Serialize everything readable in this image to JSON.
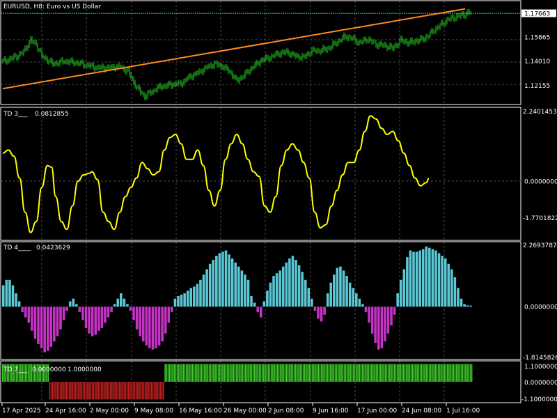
{
  "window": {
    "title": "EURUSD, H8:  Euro vs US Dollar",
    "symbol": "EURUSD",
    "timeframe": "H8"
  },
  "colors": {
    "background": "#000000",
    "grid": "#4a4a4a",
    "border": "#ffffff",
    "candle": "#22c422",
    "bid_line": "#33c8d8",
    "trendline": "#ff8c1a",
    "td3_line": "#ffff00",
    "td4_pos": "#5bc8d6",
    "td4_neg": "#c832c8",
    "td7_pos": "#3ccc28",
    "td7_neg": "#c02020"
  },
  "panels": {
    "price": {
      "current_price": "1.17663",
      "levels": [
        "1.15865",
        "1.14010",
        "1.12155"
      ]
    },
    "td3": {
      "label": "TD 3___",
      "value": "0.0812855",
      "max_label": "2.2401453",
      "zero_label": "0.0000000",
      "min_label": "-1.7701822"
    },
    "td4": {
      "label": "TD 4____",
      "value": "0.0423629",
      "max_label": "2.2693787",
      "zero_label": "0.0000000",
      "min_label": "-1.8145826"
    },
    "td7": {
      "label": "TD 7___",
      "value1": "0.0000000",
      "value2": "1.0000000",
      "max_label": "1.1000000",
      "zero_label": "0.0000000",
      "min_label": "-1.1000000"
    }
  },
  "time_axis": {
    "labels": [
      "17 Apr 2025",
      "24 Apr 16:00",
      "2 May 00:00",
      "9 May 08:00",
      "16 May 16:00",
      "26 May 00:00",
      "2 Jun 08:00",
      "9 Jun 16:00",
      "17 Jun 00:00",
      "24 Jun 08:00",
      "1 Jul 16:00"
    ]
  },
  "chart_data": {
    "type": "line",
    "title": "EURUSD, H8:  Euro vs US Dollar",
    "price_path": [
      [
        0,
        1.14
      ],
      [
        6,
        1.142
      ],
      [
        14,
        1.146
      ],
      [
        20,
        1.156
      ],
      [
        24,
        1.153
      ],
      [
        28,
        1.144
      ],
      [
        36,
        1.138
      ],
      [
        44,
        1.14
      ],
      [
        52,
        1.139
      ],
      [
        60,
        1.137
      ],
      [
        68,
        1.135
      ],
      [
        76,
        1.135
      ],
      [
        84,
        1.136
      ],
      [
        90,
        1.132
      ],
      [
        96,
        1.12
      ],
      [
        102,
        1.113
      ],
      [
        106,
        1.116
      ],
      [
        112,
        1.12
      ],
      [
        120,
        1.122
      ],
      [
        128,
        1.123
      ],
      [
        134,
        1.128
      ],
      [
        140,
        1.131
      ],
      [
        146,
        1.135
      ],
      [
        152,
        1.138
      ],
      [
        158,
        1.136
      ],
      [
        164,
        1.131
      ],
      [
        168,
        1.125
      ],
      [
        174,
        1.13
      ],
      [
        180,
        1.136
      ],
      [
        186,
        1.141
      ],
      [
        192,
        1.143
      ],
      [
        198,
        1.146
      ],
      [
        204,
        1.147
      ],
      [
        210,
        1.144
      ],
      [
        216,
        1.143
      ],
      [
        222,
        1.148
      ],
      [
        228,
        1.148
      ],
      [
        234,
        1.15
      ],
      [
        242,
        1.156
      ],
      [
        246,
        1.159
      ],
      [
        250,
        1.158
      ],
      [
        256,
        1.154
      ],
      [
        262,
        1.157
      ],
      [
        268,
        1.153
      ],
      [
        274,
        1.152
      ],
      [
        280,
        1.15
      ],
      [
        286,
        1.156
      ],
      [
        292,
        1.154
      ],
      [
        298,
        1.156
      ],
      [
        302,
        1.157
      ],
      [
        306,
        1.16
      ],
      [
        310,
        1.164
      ],
      [
        316,
        1.169
      ],
      [
        320,
        1.172
      ],
      [
        326,
        1.174
      ],
      [
        332,
        1.176
      ],
      [
        338,
        1.178
      ],
      [
        342,
        1.179
      ],
      [
        346,
        1.177
      ],
      [
        350,
        1.1762
      ]
    ],
    "price_scale": {
      "min": 1.109,
      "max": 1.182
    },
    "trendline": {
      "from": [
        0,
        1.119
      ],
      "to": [
        332,
        1.18
      ]
    },
    "td3": [
      [
        0,
        0.9
      ],
      [
        4,
        1.0
      ],
      [
        8,
        0.8
      ],
      [
        12,
        0.1
      ],
      [
        16,
        -1.0
      ],
      [
        20,
        -1.65
      ],
      [
        24,
        -1.3
      ],
      [
        28,
        -0.2
      ],
      [
        32,
        0.5
      ],
      [
        35,
        0.45
      ],
      [
        38,
        -0.5
      ],
      [
        42,
        -1.3
      ],
      [
        46,
        -1.55
      ],
      [
        50,
        -0.8
      ],
      [
        54,
        0.0
      ],
      [
        58,
        0.2
      ],
      [
        62,
        0.25
      ],
      [
        64,
        0.3
      ],
      [
        68,
        0.05
      ],
      [
        72,
        -1.0
      ],
      [
        76,
        -1.3
      ],
      [
        80,
        -1.55
      ],
      [
        84,
        -1.0
      ],
      [
        88,
        -0.5
      ],
      [
        92,
        -0.2
      ],
      [
        96,
        0.1
      ],
      [
        100,
        0.6
      ],
      [
        104,
        0.4
      ],
      [
        108,
        0.2
      ],
      [
        112,
        0.3
      ],
      [
        116,
        1.0
      ],
      [
        120,
        1.4
      ],
      [
        124,
        1.5
      ],
      [
        128,
        1.2
      ],
      [
        132,
        0.7
      ],
      [
        136,
        0.7
      ],
      [
        140,
        1.0
      ],
      [
        144,
        0.5
      ],
      [
        148,
        -0.3
      ],
      [
        152,
        -0.8
      ],
      [
        156,
        -0.3
      ],
      [
        160,
        0.7
      ],
      [
        164,
        1.2
      ],
      [
        168,
        1.5
      ],
      [
        172,
        1.2
      ],
      [
        176,
        0.7
      ],
      [
        180,
        0.3
      ],
      [
        184,
        0.15
      ],
      [
        188,
        -0.8
      ],
      [
        192,
        -1.0
      ],
      [
        196,
        -0.5
      ],
      [
        200,
        0.5
      ],
      [
        204,
        1.0
      ],
      [
        208,
        1.2
      ],
      [
        212,
        1.0
      ],
      [
        216,
        0.6
      ],
      [
        220,
        0.1
      ],
      [
        224,
        -1.0
      ],
      [
        228,
        -1.5
      ],
      [
        232,
        -1.4
      ],
      [
        236,
        -0.8
      ],
      [
        240,
        -0.3
      ],
      [
        244,
        0.2
      ],
      [
        248,
        0.6
      ],
      [
        252,
        0.6
      ],
      [
        256,
        1.0
      ],
      [
        260,
        1.6
      ],
      [
        264,
        2.1
      ],
      [
        268,
        2.0
      ],
      [
        272,
        1.7
      ],
      [
        276,
        1.5
      ],
      [
        280,
        1.6
      ],
      [
        284,
        1.3
      ],
      [
        288,
        0.9
      ],
      [
        292,
        0.5
      ],
      [
        296,
        0.1
      ],
      [
        300,
        -0.15
      ],
      [
        304,
        -0.05
      ],
      [
        306,
        0.08
      ]
    ],
    "td3_scale": {
      "min": -1.7701822,
      "max": 2.2401453
    },
    "td4_bars": [
      0.8,
      1.0,
      1.0,
      0.8,
      0.5,
      0.2,
      -0.2,
      -0.4,
      -0.6,
      -0.9,
      -1.2,
      -1.4,
      -1.55,
      -1.7,
      -1.65,
      -1.5,
      -1.3,
      -1.1,
      -0.85,
      -0.5,
      -0.15,
      0.2,
      0.3,
      0.1,
      -0.2,
      -0.5,
      -0.8,
      -1.0,
      -1.1,
      -1.05,
      -0.9,
      -0.8,
      -0.6,
      -0.4,
      -0.2,
      0.1,
      0.3,
      0.5,
      0.3,
      0.1,
      -0.15,
      -0.5,
      -0.85,
      -1.1,
      -1.3,
      -1.45,
      -1.55,
      -1.6,
      -1.55,
      -1.45,
      -1.3,
      -1.0,
      -0.6,
      -0.2,
      0.3,
      0.4,
      0.45,
      0.5,
      0.6,
      0.7,
      0.75,
      0.85,
      1.0,
      1.2,
      1.4,
      1.6,
      1.75,
      1.9,
      2.0,
      2.05,
      2.1,
      1.95,
      1.8,
      1.65,
      1.5,
      1.35,
      1.2,
      1.0,
      0.4,
      0.15,
      -0.2,
      -0.4,
      0.2,
      0.6,
      0.9,
      1.15,
      1.25,
      1.35,
      1.5,
      1.65,
      1.8,
      1.9,
      1.75,
      1.55,
      1.3,
      1.0,
      0.7,
      0.3,
      -0.15,
      -0.45,
      -0.55,
      -0.3,
      0.5,
      0.9,
      1.2,
      1.45,
      1.5,
      1.35,
      1.15,
      0.9,
      0.7,
      0.5,
      0.3,
      0.1,
      -0.2,
      -0.6,
      -1.0,
      -1.35,
      -1.6,
      -1.55,
      -1.3,
      -1.0,
      -0.7,
      -0.3,
      0.5,
      1.0,
      1.4,
      1.85,
      2.1,
      2.05,
      2.05,
      2.1,
      2.15,
      2.25,
      2.2,
      2.15,
      2.1,
      2.0,
      1.9,
      1.8,
      1.6,
      1.4,
      1.1,
      0.7,
      0.3,
      0.1,
      0.05,
      0.04
    ],
    "td4_scale": {
      "min": -1.8145826,
      "max": 2.2693787
    },
    "td7_segments": [
      {
        "from": 0,
        "to": 31,
        "value": 1.0
      },
      {
        "from": 31,
        "to": 107,
        "value": -1.0
      },
      {
        "from": 107,
        "to": 310,
        "value": 1.0
      }
    ],
    "td7_scale": {
      "min": -1.1,
      "max": 1.1
    }
  }
}
